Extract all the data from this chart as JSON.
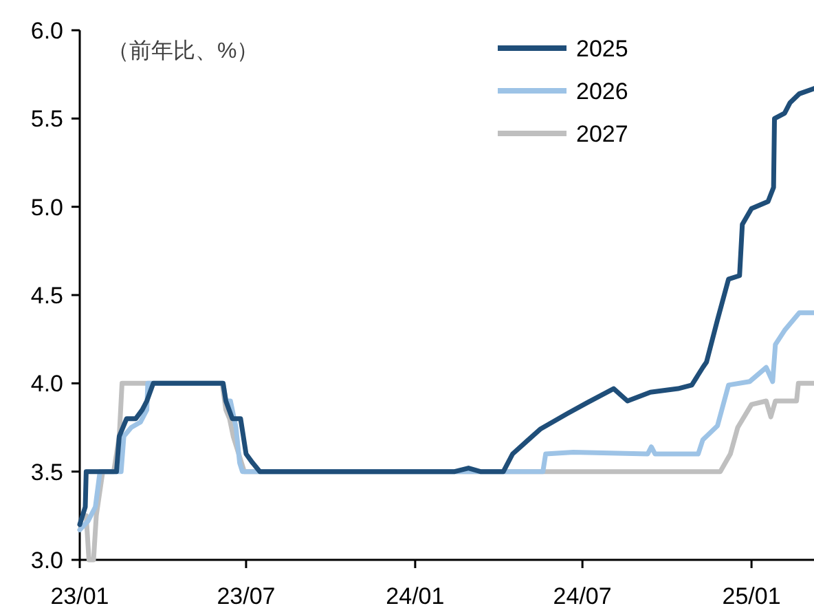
{
  "chart_data": {
    "type": "line",
    "annotations": [
      "（前年比、%）"
    ],
    "xlim": [
      "2023-01-01",
      "2025-03-10"
    ],
    "xticks": [
      {
        "value": "2023-01",
        "label": "23/01"
      },
      {
        "value": "2023-07",
        "label": "23/07"
      },
      {
        "value": "2024-01",
        "label": "24/01"
      },
      {
        "value": "2024-07",
        "label": "24/07"
      },
      {
        "value": "2025-01",
        "label": "25/01"
      }
    ],
    "ylim": [
      3.0,
      6.0
    ],
    "yticks": [
      {
        "value": 3.0,
        "label": "3.0"
      },
      {
        "value": 3.5,
        "label": "3.5"
      },
      {
        "value": 4.0,
        "label": "4.0"
      },
      {
        "value": 4.5,
        "label": "4.5"
      },
      {
        "value": 5.0,
        "label": "5.0"
      },
      {
        "value": 5.5,
        "label": "5.5"
      },
      {
        "value": 6.0,
        "label": "6.0"
      }
    ],
    "legend": "top",
    "grid": false,
    "marker": "none",
    "line_style": "solid",
    "series": [
      {
        "name": "2025",
        "color": "#1f4e79",
        "x": [
          "2023-01-01",
          "2023-01-07",
          "2023-01-08",
          "2023-02-10",
          "2023-02-13",
          "2023-02-21",
          "2023-03-03",
          "2023-03-10",
          "2023-03-15",
          "2023-03-22",
          "2023-06-06",
          "2023-06-09",
          "2023-06-16",
          "2023-06-25",
          "2023-07-01",
          "2023-07-08",
          "2023-07-16",
          "2024-02-13",
          "2024-02-28",
          "2024-03-12",
          "2024-04-06",
          "2024-04-16",
          "2024-05-16",
          "2024-06-15",
          "2024-07-06",
          "2024-08-04",
          "2024-08-19",
          "2024-09-13",
          "2024-10-13",
          "2024-10-28",
          "2024-11-09",
          "2024-11-13",
          "2024-11-25",
          "2024-12-07",
          "2024-12-19",
          "2024-12-22",
          "2025-01-01",
          "2025-01-19",
          "2025-01-25",
          "2025-01-26",
          "2025-02-06",
          "2025-02-12",
          "2025-02-22",
          "2025-03-10"
        ],
        "values": [
          3.2,
          3.3,
          3.5,
          3.5,
          3.7,
          3.8,
          3.8,
          3.85,
          3.9,
          4.0,
          4.0,
          3.9,
          3.8,
          3.8,
          3.6,
          3.55,
          3.5,
          3.5,
          3.52,
          3.5,
          3.5,
          3.6,
          3.74,
          3.83,
          3.89,
          3.97,
          3.9,
          3.95,
          3.97,
          3.99,
          4.09,
          4.12,
          4.36,
          4.59,
          4.61,
          4.9,
          4.99,
          5.03,
          5.11,
          5.5,
          5.53,
          5.59,
          5.64,
          5.67
        ]
      },
      {
        "name": "2026",
        "color": "#9dc3e6",
        "x": [
          "2023-01-01",
          "2023-01-10",
          "2023-01-18",
          "2023-01-23",
          "2023-02-15",
          "2023-02-18",
          "2023-02-26",
          "2023-03-08",
          "2023-03-15",
          "2023-03-16",
          "2023-06-06",
          "2023-06-09",
          "2023-06-14",
          "2023-06-20",
          "2023-06-24",
          "2023-06-27",
          "2024-05-19",
          "2024-05-22",
          "2024-06-21",
          "2024-09-10",
          "2024-09-14",
          "2024-09-18",
          "2024-11-04",
          "2024-11-09",
          "2024-11-25",
          "2024-12-07",
          "2024-12-30",
          "2025-01-17",
          "2025-01-24",
          "2025-01-27",
          "2025-02-06",
          "2025-02-22",
          "2025-03-10"
        ],
        "values": [
          3.17,
          3.22,
          3.3,
          3.5,
          3.5,
          3.7,
          3.75,
          3.78,
          3.85,
          4.0,
          4.0,
          3.9,
          3.9,
          3.75,
          3.55,
          3.5,
          3.5,
          3.6,
          3.61,
          3.6,
          3.64,
          3.6,
          3.6,
          3.68,
          3.76,
          3.99,
          4.01,
          4.09,
          4.01,
          4.22,
          4.3,
          4.4,
          4.4
        ]
      },
      {
        "name": "2027",
        "color": "#bfbfbf",
        "x": [
          "2023-01-08",
          "2023-01-11",
          "2023-01-16",
          "2023-01-19",
          "2023-01-26",
          "2023-02-07",
          "2023-02-13",
          "2023-02-16",
          "2023-06-05",
          "2023-06-09",
          "2023-06-13",
          "2023-06-17",
          "2023-06-20",
          "2023-06-29",
          "2024-11-28",
          "2024-12-09",
          "2024-12-17",
          "2025-01-01",
          "2025-01-17",
          "2025-01-22",
          "2025-01-27",
          "2025-02-19",
          "2025-02-21",
          "2025-03-10"
        ],
        "values": [
          3.25,
          3.0,
          3.0,
          3.25,
          3.5,
          3.5,
          3.7,
          4.0,
          4.0,
          3.85,
          3.8,
          3.7,
          3.65,
          3.5,
          3.5,
          3.6,
          3.75,
          3.88,
          3.9,
          3.81,
          3.9,
          3.9,
          4.0,
          4.0
        ]
      }
    ]
  }
}
